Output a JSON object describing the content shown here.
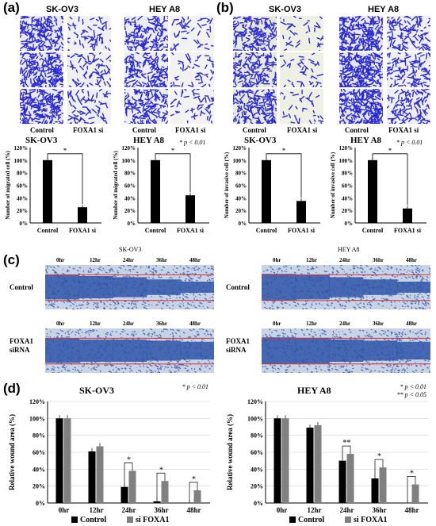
{
  "panel_labels": {
    "a": "(a)",
    "b": "(b)",
    "c": "(c)",
    "d": "(d)"
  },
  "panel_a": {
    "titles": [
      "SK-OV3",
      "HEY A8"
    ],
    "captions": [
      "Control",
      "FOXA1 si",
      "Control",
      "FOXA1 si"
    ]
  },
  "panel_b": {
    "titles": [
      "SK-OV3",
      "HEY A8"
    ],
    "captions": [
      "Control",
      "FOXA1 si",
      "Control",
      "FOXA1 si"
    ]
  },
  "panel_c": {
    "titles": [
      "SK-OV3",
      "HEY A8"
    ],
    "times": [
      "0hr",
      "12hr",
      "24hr",
      "36hr",
      "48hr"
    ],
    "rows": [
      "Control",
      "FOXA1\nsiRNA"
    ],
    "row_labels": [
      [
        "Control"
      ],
      [
        "FOXA1",
        "siRNA"
      ]
    ]
  },
  "chart_data": [
    {
      "type": "bar",
      "title": "SK-OV3",
      "ylabel": "Number of migrated cell (%)",
      "categories": [
        "Control",
        "FOXA1 si"
      ],
      "values": [
        100,
        25
      ],
      "ylim": [
        0,
        120
      ],
      "yticks": [
        "0%",
        "20%",
        "40%",
        "60%",
        "80%",
        "100%",
        "120%"
      ],
      "annotation": "*",
      "color": "#000000"
    },
    {
      "type": "bar",
      "title": "HEY A8",
      "ylabel": "Number of migrated cell (%)",
      "categories": [
        "Control",
        "FOXA1 si"
      ],
      "values": [
        100,
        44
      ],
      "ylim": [
        0,
        120
      ],
      "yticks": [
        "0%",
        "20%",
        "40%",
        "60%",
        "80%",
        "100%",
        "120%"
      ],
      "annotation": "*",
      "legend_note": "* p < 0.01",
      "color": "#000000"
    },
    {
      "type": "bar",
      "title": "SK-OV3",
      "ylabel": "Number of invasive cell (%)",
      "categories": [
        "Control",
        "FOXA1 si"
      ],
      "values": [
        100,
        35
      ],
      "ylim": [
        0,
        120
      ],
      "yticks": [
        "0%",
        "20%",
        "40%",
        "60%",
        "80%",
        "100%",
        "120%"
      ],
      "annotation": "*",
      "color": "#000000"
    },
    {
      "type": "bar",
      "title": "HEY A8",
      "ylabel": "Number of invasive cell (%)",
      "categories": [
        "Control",
        "FOXA1 si"
      ],
      "values": [
        100,
        23
      ],
      "ylim": [
        0,
        120
      ],
      "yticks": [
        "0%",
        "20%",
        "40%",
        "60%",
        "80%",
        "100%",
        "120%"
      ],
      "annotation": "*",
      "legend_note": "* p < 0.01",
      "color": "#000000"
    },
    {
      "type": "bar",
      "title": "SK-OV3",
      "ylabel": "Relative wound area (%)",
      "categories": [
        "0hr",
        "12hr",
        "24hr",
        "36hr",
        "48hr"
      ],
      "ylim": [
        0,
        120
      ],
      "yticks": [
        "0%",
        "20%",
        "40%",
        "60%",
        "80%",
        "100%",
        "120%"
      ],
      "series": [
        {
          "name": "Control",
          "color": "#000000",
          "values": [
            100,
            61,
            19,
            2,
            0
          ]
        },
        {
          "name": "si FOXA1",
          "color": "#808080",
          "values": [
            100,
            67,
            38,
            26,
            15
          ]
        }
      ],
      "significance": [
        "",
        "",
        "*",
        "*",
        "*"
      ],
      "legend_note": [
        "* p < 0.01"
      ]
    },
    {
      "type": "bar",
      "title": "HEY A8",
      "ylabel": "Relative wound area (%)",
      "categories": [
        "0hr",
        "12hr",
        "24hr",
        "36hr",
        "48hr"
      ],
      "ylim": [
        0,
        120
      ],
      "yticks": [
        "0%",
        "20%",
        "40%",
        "60%",
        "80%",
        "100%",
        "120%"
      ],
      "series": [
        {
          "name": "Control",
          "color": "#000000",
          "values": [
            100,
            89,
            50,
            29,
            0
          ]
        },
        {
          "name": "si FOXA1",
          "color": "#808080",
          "values": [
            100,
            92,
            58,
            42,
            22
          ]
        }
      ],
      "significance": [
        "",
        "",
        "**",
        "*",
        "*"
      ],
      "legend_note": [
        "* p < 0.01",
        "** p < 0.05"
      ]
    }
  ]
}
